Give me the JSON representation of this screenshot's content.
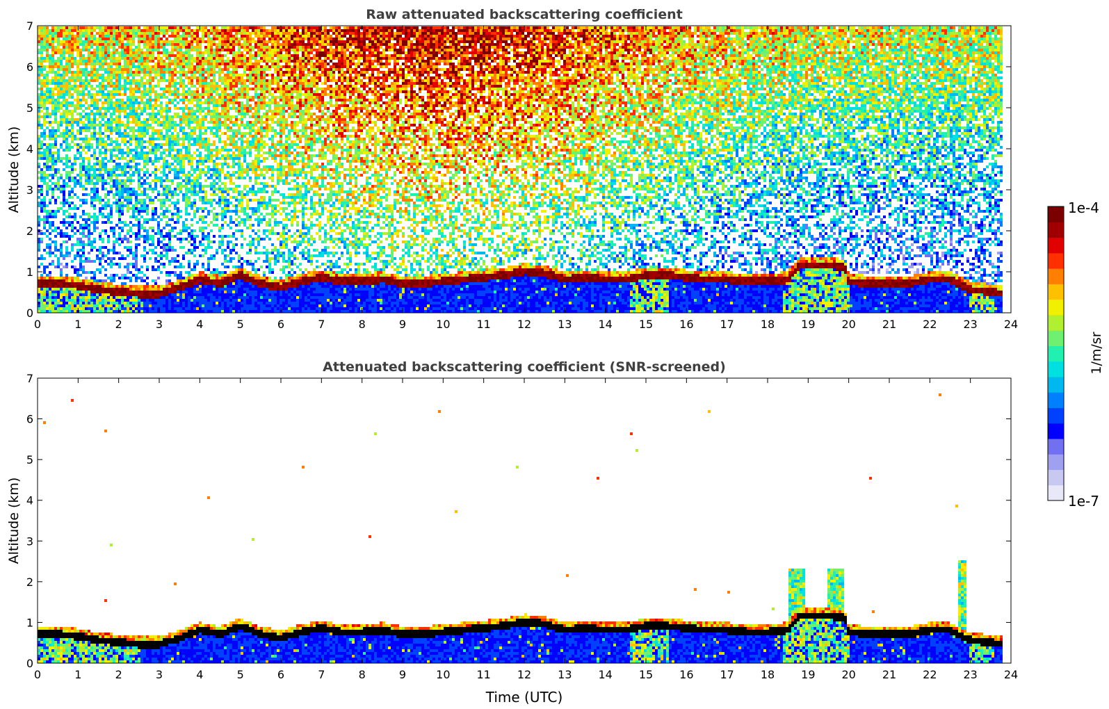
{
  "chart_data": [
    {
      "type": "heatmap",
      "title": "Raw attenuated backscattering coefficient",
      "ylabel": "Altitude (km)",
      "xlabel": "",
      "xlim": [
        0,
        24
      ],
      "ylim": [
        0,
        7
      ],
      "x_ticks": [
        "0",
        "1",
        "2",
        "3",
        "4",
        "5",
        "6",
        "7",
        "8",
        "9",
        "10",
        "11",
        "12",
        "13",
        "14",
        "15",
        "16",
        "17",
        "18",
        "19",
        "20",
        "21",
        "22",
        "23",
        "24"
      ],
      "y_ticks": [
        "0",
        "1",
        "2",
        "3",
        "4",
        "5",
        "6",
        "7"
      ],
      "cloud_base_km": [
        [
          0.0,
          0.7
        ],
        [
          0.5,
          0.7
        ],
        [
          1.0,
          0.65
        ],
        [
          1.5,
          0.55
        ],
        [
          2.0,
          0.5
        ],
        [
          2.5,
          0.45
        ],
        [
          3.0,
          0.45
        ],
        [
          3.5,
          0.6
        ],
        [
          4.0,
          0.8
        ],
        [
          4.5,
          0.7
        ],
        [
          5.0,
          0.9
        ],
        [
          5.5,
          0.7
        ],
        [
          6.0,
          0.6
        ],
        [
          6.5,
          0.75
        ],
        [
          7.0,
          0.85
        ],
        [
          7.5,
          0.75
        ],
        [
          8.0,
          0.75
        ],
        [
          8.5,
          0.8
        ],
        [
          9.0,
          0.7
        ],
        [
          9.5,
          0.7
        ],
        [
          10.0,
          0.75
        ],
        [
          10.5,
          0.8
        ],
        [
          11.0,
          0.85
        ],
        [
          11.5,
          0.9
        ],
        [
          12.0,
          1.0
        ],
        [
          12.5,
          0.95
        ],
        [
          13.0,
          0.8
        ],
        [
          13.5,
          0.85
        ],
        [
          14.0,
          0.8
        ],
        [
          14.5,
          0.8
        ],
        [
          15.0,
          0.9
        ],
        [
          15.5,
          0.9
        ],
        [
          16.0,
          0.85
        ],
        [
          16.5,
          0.8
        ],
        [
          17.0,
          0.8
        ],
        [
          17.5,
          0.75
        ],
        [
          18.0,
          0.75
        ],
        [
          18.5,
          0.8
        ],
        [
          18.8,
          1.15
        ],
        [
          19.5,
          1.15
        ],
        [
          19.9,
          1.1
        ],
        [
          20.0,
          0.75
        ],
        [
          20.5,
          0.7
        ],
        [
          21.0,
          0.7
        ],
        [
          21.5,
          0.7
        ],
        [
          22.0,
          0.8
        ],
        [
          22.5,
          0.8
        ],
        [
          23.0,
          0.55
        ],
        [
          23.5,
          0.5
        ],
        [
          23.8,
          0.45
        ]
      ]
    },
    {
      "type": "heatmap",
      "title": "Attenuated backscattering coefficient (SNR-screened)",
      "ylabel": "Altitude (km)",
      "xlabel": "Time (UTC)",
      "xlim": [
        0,
        24
      ],
      "ylim": [
        0,
        7
      ],
      "x_ticks": [
        "0",
        "1",
        "2",
        "3",
        "4",
        "5",
        "6",
        "7",
        "8",
        "9",
        "10",
        "11",
        "12",
        "13",
        "14",
        "15",
        "16",
        "17",
        "18",
        "19",
        "20",
        "21",
        "22",
        "23",
        "24"
      ],
      "y_ticks": [
        "0",
        "1",
        "2",
        "3",
        "4",
        "5",
        "6",
        "7"
      ]
    }
  ],
  "colorbar": {
    "label": "1/m/sr",
    "max_label": "1e-4",
    "min_label": "1e-7",
    "scale": "log",
    "colors": [
      "#e8e8f8",
      "#c8c8f0",
      "#a0a0f0",
      "#7070f0",
      "#0000ff",
      "#0040ff",
      "#0080ff",
      "#00b8f0",
      "#00e0e0",
      "#20f0b0",
      "#70f070",
      "#b0f030",
      "#f0f000",
      "#ffc000",
      "#ff8000",
      "#ff3000",
      "#e00000",
      "#a00000",
      "#7a0000"
    ]
  }
}
